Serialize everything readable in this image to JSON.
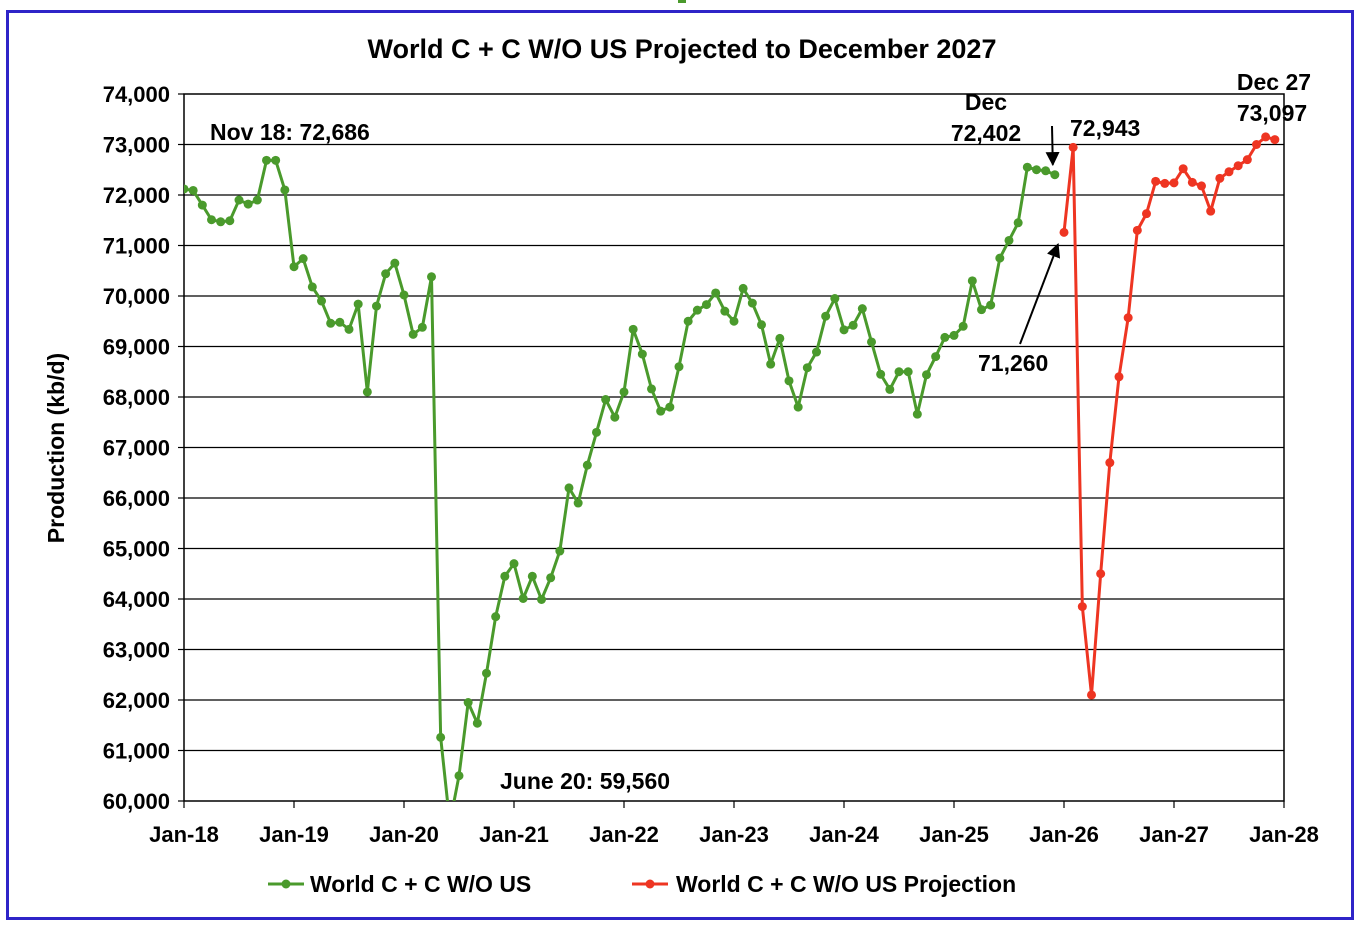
{
  "chart_data": {
    "type": "line",
    "title": "World C + C W/O US Projected to December 2027",
    "ylabel": "Production (kb/d)",
    "xlabel": "",
    "ylim": [
      60000,
      74000
    ],
    "yticks": [
      60000,
      61000,
      62000,
      63000,
      64000,
      65000,
      66000,
      67000,
      68000,
      69000,
      70000,
      71000,
      72000,
      73000,
      74000
    ],
    "ytick_labels": [
      "60,000",
      "61,000",
      "62,000",
      "63,000",
      "64,000",
      "65,000",
      "66,000",
      "67,000",
      "68,000",
      "69,000",
      "70,000",
      "71,000",
      "72,000",
      "73,000",
      "74,000"
    ],
    "x_range_months": [
      0,
      120
    ],
    "xtick_labels": [
      "Jan-18",
      "Jan-19",
      "Jan-20",
      "Jan-21",
      "Jan-22",
      "Jan-23",
      "Jan-24",
      "Jan-25",
      "Jan-26",
      "Jan-27",
      "Jan-28"
    ],
    "grid": true,
    "legend_position": "bottom",
    "series": [
      {
        "name": "World C + C W/O US",
        "color": "#4a9a2c",
        "start_month": 0,
        "values": [
          72120,
          72090,
          71800,
          71510,
          71470,
          71490,
          71900,
          71820,
          71900,
          72686,
          72686,
          72100,
          70580,
          70740,
          70180,
          69900,
          69460,
          69480,
          69340,
          69840,
          68100,
          69800,
          70440,
          70650,
          70020,
          69240,
          69380,
          70380,
          61260,
          59560,
          60500,
          61950,
          61540,
          62530,
          63650,
          64450,
          64700,
          64010,
          64450,
          63990,
          64420,
          64950,
          66200,
          65900,
          66650,
          67300,
          67950,
          67600,
          68100,
          69340,
          68850,
          68160,
          67720,
          67800,
          68600,
          69500,
          69720,
          69830,
          70060,
          69700,
          69500,
          70150,
          69860,
          69430,
          68650,
          69160,
          68320,
          67800,
          68580,
          68890,
          69600,
          69950,
          69330,
          69420,
          69750,
          69090,
          68450,
          68150,
          68500,
          68500,
          67660,
          68440,
          68800,
          69180,
          69220,
          69400,
          70300,
          69730,
          69820,
          70750,
          71100,
          71450,
          72550,
          72500,
          72480,
          72402
        ]
      },
      {
        "name": "World C + C W/O US Projection",
        "color": "#ee3522",
        "start_month": 96,
        "values": [
          71260,
          72943,
          63850,
          62100,
          64500,
          66700,
          68400,
          69570,
          71300,
          71630,
          72270,
          72230,
          72240,
          72520,
          72250,
          72180,
          71680,
          72330,
          72460,
          72580,
          72700,
          73000,
          73150,
          73097
        ]
      }
    ],
    "annotations": [
      {
        "text": "Nov 18: 72,686"
      },
      {
        "text": "June 20: 59,560"
      },
      {
        "lines": [
          "Dec",
          "72,402"
        ]
      },
      {
        "text": "72,943"
      },
      {
        "text": "71,260"
      },
      {
        "lines": [
          "Dec 27",
          "73,097"
        ]
      }
    ]
  }
}
